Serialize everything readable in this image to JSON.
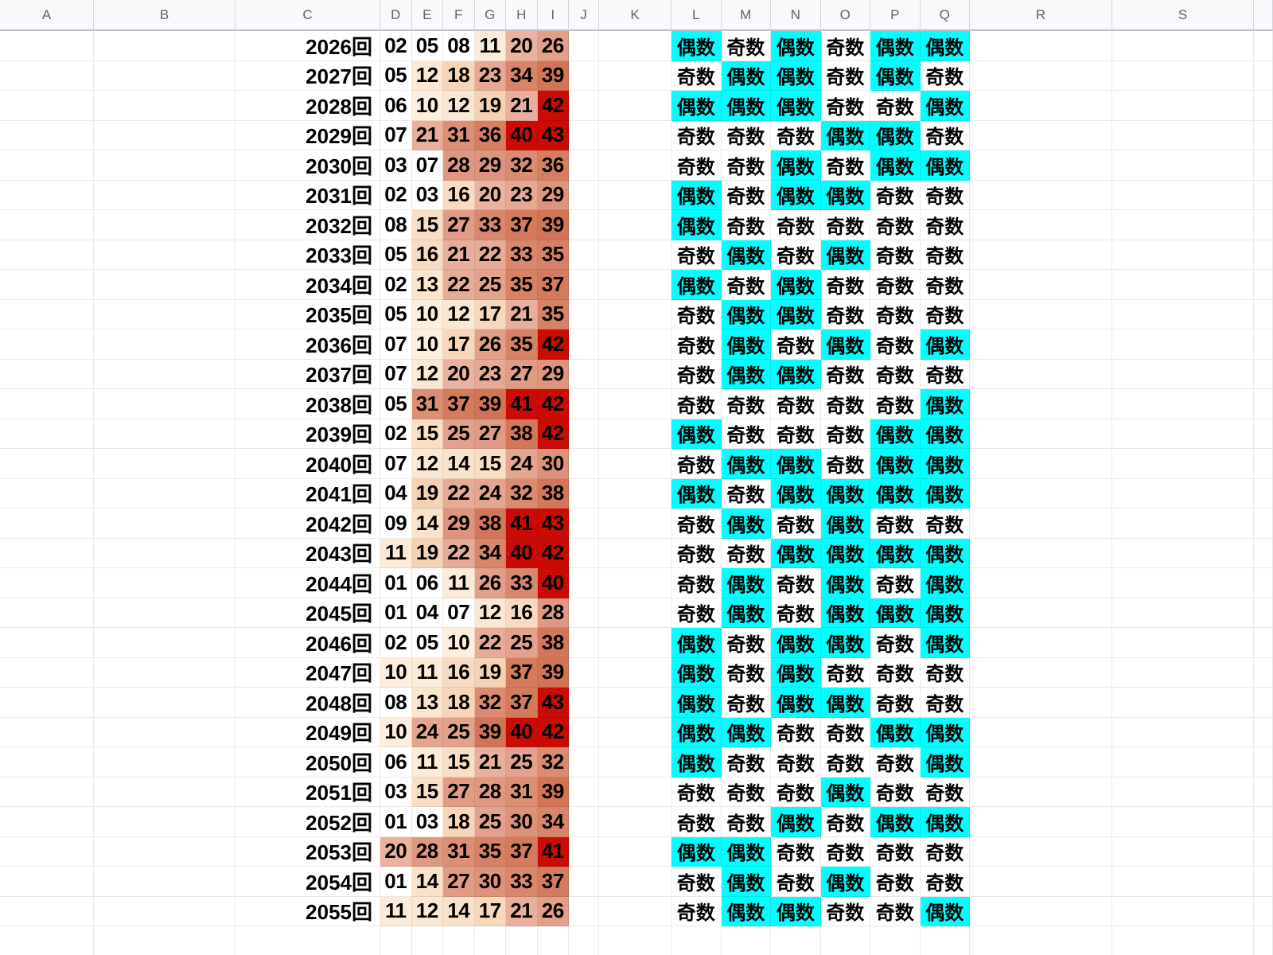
{
  "sheet": {
    "column_headers": [
      "A",
      "B",
      "C",
      "D",
      "E",
      "F",
      "G",
      "H",
      "I",
      "J",
      "K",
      "L",
      "M",
      "N",
      "O",
      "P",
      "Q",
      "R",
      "S"
    ],
    "parity_even_label": "偶数",
    "parity_odd_label": "奇数",
    "colors": {
      "even_bg": "#00ffff",
      "odd_bg": "#ffffff",
      "heat_white": "#ffffff",
      "heat_cream_start": "#fdeedd",
      "heat_cream_end": "#f5d2b4",
      "heat_salmon_start": "#e9b3a0",
      "heat_salmon_end": "#d27456",
      "heat_red_max": "#cb0b06",
      "header_bg": "#f8f9fa",
      "header_text": "#5f6368"
    },
    "rows": [
      {
        "round": "2026回",
        "numbers": [
          "02",
          "05",
          "08",
          "11",
          "20",
          "26"
        ],
        "parity": [
          "偶数",
          "奇数",
          "偶数",
          "奇数",
          "偶数",
          "偶数"
        ]
      },
      {
        "round": "2027回",
        "numbers": [
          "05",
          "12",
          "18",
          "23",
          "34",
          "39"
        ],
        "parity": [
          "奇数",
          "偶数",
          "偶数",
          "奇数",
          "偶数",
          "奇数"
        ]
      },
      {
        "round": "2028回",
        "numbers": [
          "06",
          "10",
          "12",
          "19",
          "21",
          "42"
        ],
        "parity": [
          "偶数",
          "偶数",
          "偶数",
          "奇数",
          "奇数",
          "偶数"
        ]
      },
      {
        "round": "2029回",
        "numbers": [
          "07",
          "21",
          "31",
          "36",
          "40",
          "43"
        ],
        "parity": [
          "奇数",
          "奇数",
          "奇数",
          "偶数",
          "偶数",
          "奇数"
        ]
      },
      {
        "round": "2030回",
        "numbers": [
          "03",
          "07",
          "28",
          "29",
          "32",
          "36"
        ],
        "parity": [
          "奇数",
          "奇数",
          "偶数",
          "奇数",
          "偶数",
          "偶数"
        ]
      },
      {
        "round": "2031回",
        "numbers": [
          "02",
          "03",
          "16",
          "20",
          "23",
          "29"
        ],
        "parity": [
          "偶数",
          "奇数",
          "偶数",
          "偶数",
          "奇数",
          "奇数"
        ]
      },
      {
        "round": "2032回",
        "numbers": [
          "08",
          "15",
          "27",
          "33",
          "37",
          "39"
        ],
        "parity": [
          "偶数",
          "奇数",
          "奇数",
          "奇数",
          "奇数",
          "奇数"
        ]
      },
      {
        "round": "2033回",
        "numbers": [
          "05",
          "16",
          "21",
          "22",
          "33",
          "35"
        ],
        "parity": [
          "奇数",
          "偶数",
          "奇数",
          "偶数",
          "奇数",
          "奇数"
        ]
      },
      {
        "round": "2034回",
        "numbers": [
          "02",
          "13",
          "22",
          "25",
          "35",
          "37"
        ],
        "parity": [
          "偶数",
          "奇数",
          "偶数",
          "奇数",
          "奇数",
          "奇数"
        ]
      },
      {
        "round": "2035回",
        "numbers": [
          "05",
          "10",
          "12",
          "17",
          "21",
          "35"
        ],
        "parity": [
          "奇数",
          "偶数",
          "偶数",
          "奇数",
          "奇数",
          "奇数"
        ]
      },
      {
        "round": "2036回",
        "numbers": [
          "07",
          "10",
          "17",
          "26",
          "35",
          "42"
        ],
        "parity": [
          "奇数",
          "偶数",
          "奇数",
          "偶数",
          "奇数",
          "偶数"
        ]
      },
      {
        "round": "2037回",
        "numbers": [
          "07",
          "12",
          "20",
          "23",
          "27",
          "29"
        ],
        "parity": [
          "奇数",
          "偶数",
          "偶数",
          "奇数",
          "奇数",
          "奇数"
        ]
      },
      {
        "round": "2038回",
        "numbers": [
          "05",
          "31",
          "37",
          "39",
          "41",
          "42"
        ],
        "parity": [
          "奇数",
          "奇数",
          "奇数",
          "奇数",
          "奇数",
          "偶数"
        ]
      },
      {
        "round": "2039回",
        "numbers": [
          "02",
          "15",
          "25",
          "27",
          "38",
          "42"
        ],
        "parity": [
          "偶数",
          "奇数",
          "奇数",
          "奇数",
          "偶数",
          "偶数"
        ]
      },
      {
        "round": "2040回",
        "numbers": [
          "07",
          "12",
          "14",
          "15",
          "24",
          "30"
        ],
        "parity": [
          "奇数",
          "偶数",
          "偶数",
          "奇数",
          "偶数",
          "偶数"
        ]
      },
      {
        "round": "2041回",
        "numbers": [
          "04",
          "19",
          "22",
          "24",
          "32",
          "38"
        ],
        "parity": [
          "偶数",
          "奇数",
          "偶数",
          "偶数",
          "偶数",
          "偶数"
        ]
      },
      {
        "round": "2042回",
        "numbers": [
          "09",
          "14",
          "29",
          "38",
          "41",
          "43"
        ],
        "parity": [
          "奇数",
          "偶数",
          "奇数",
          "偶数",
          "奇数",
          "奇数"
        ]
      },
      {
        "round": "2043回",
        "numbers": [
          "11",
          "19",
          "22",
          "34",
          "40",
          "42"
        ],
        "parity": [
          "奇数",
          "奇数",
          "偶数",
          "偶数",
          "偶数",
          "偶数"
        ]
      },
      {
        "round": "2044回",
        "numbers": [
          "01",
          "06",
          "11",
          "26",
          "33",
          "40"
        ],
        "parity": [
          "奇数",
          "偶数",
          "奇数",
          "偶数",
          "奇数",
          "偶数"
        ]
      },
      {
        "round": "2045回",
        "numbers": [
          "01",
          "04",
          "07",
          "12",
          "16",
          "28"
        ],
        "parity": [
          "奇数",
          "偶数",
          "奇数",
          "偶数",
          "偶数",
          "偶数"
        ]
      },
      {
        "round": "2046回",
        "numbers": [
          "02",
          "05",
          "10",
          "22",
          "25",
          "38"
        ],
        "parity": [
          "偶数",
          "奇数",
          "偶数",
          "偶数",
          "奇数",
          "偶数"
        ]
      },
      {
        "round": "2047回",
        "numbers": [
          "10",
          "11",
          "16",
          "19",
          "37",
          "39"
        ],
        "parity": [
          "偶数",
          "奇数",
          "偶数",
          "奇数",
          "奇数",
          "奇数"
        ]
      },
      {
        "round": "2048回",
        "numbers": [
          "08",
          "13",
          "18",
          "32",
          "37",
          "43"
        ],
        "parity": [
          "偶数",
          "奇数",
          "偶数",
          "偶数",
          "奇数",
          "奇数"
        ]
      },
      {
        "round": "2049回",
        "numbers": [
          "10",
          "24",
          "25",
          "39",
          "40",
          "42"
        ],
        "parity": [
          "偶数",
          "偶数",
          "奇数",
          "奇数",
          "偶数",
          "偶数"
        ]
      },
      {
        "round": "2050回",
        "numbers": [
          "06",
          "11",
          "15",
          "21",
          "25",
          "32"
        ],
        "parity": [
          "偶数",
          "奇数",
          "奇数",
          "奇数",
          "奇数",
          "偶数"
        ]
      },
      {
        "round": "2051回",
        "numbers": [
          "03",
          "15",
          "27",
          "28",
          "31",
          "39"
        ],
        "parity": [
          "奇数",
          "奇数",
          "奇数",
          "偶数",
          "奇数",
          "奇数"
        ]
      },
      {
        "round": "2052回",
        "numbers": [
          "01",
          "03",
          "18",
          "25",
          "30",
          "34"
        ],
        "parity": [
          "奇数",
          "奇数",
          "偶数",
          "奇数",
          "偶数",
          "偶数"
        ]
      },
      {
        "round": "2053回",
        "numbers": [
          "20",
          "28",
          "31",
          "35",
          "37",
          "41"
        ],
        "parity": [
          "偶数",
          "偶数",
          "奇数",
          "奇数",
          "奇数",
          "奇数"
        ]
      },
      {
        "round": "2054回",
        "numbers": [
          "01",
          "14",
          "27",
          "30",
          "33",
          "37"
        ],
        "parity": [
          "奇数",
          "偶数",
          "奇数",
          "偶数",
          "奇数",
          "奇数"
        ]
      },
      {
        "round": "2055回",
        "numbers": [
          "11",
          "12",
          "14",
          "17",
          "21",
          "26"
        ],
        "parity": [
          "奇数",
          "偶数",
          "偶数",
          "奇数",
          "奇数",
          "偶数"
        ]
      }
    ]
  }
}
